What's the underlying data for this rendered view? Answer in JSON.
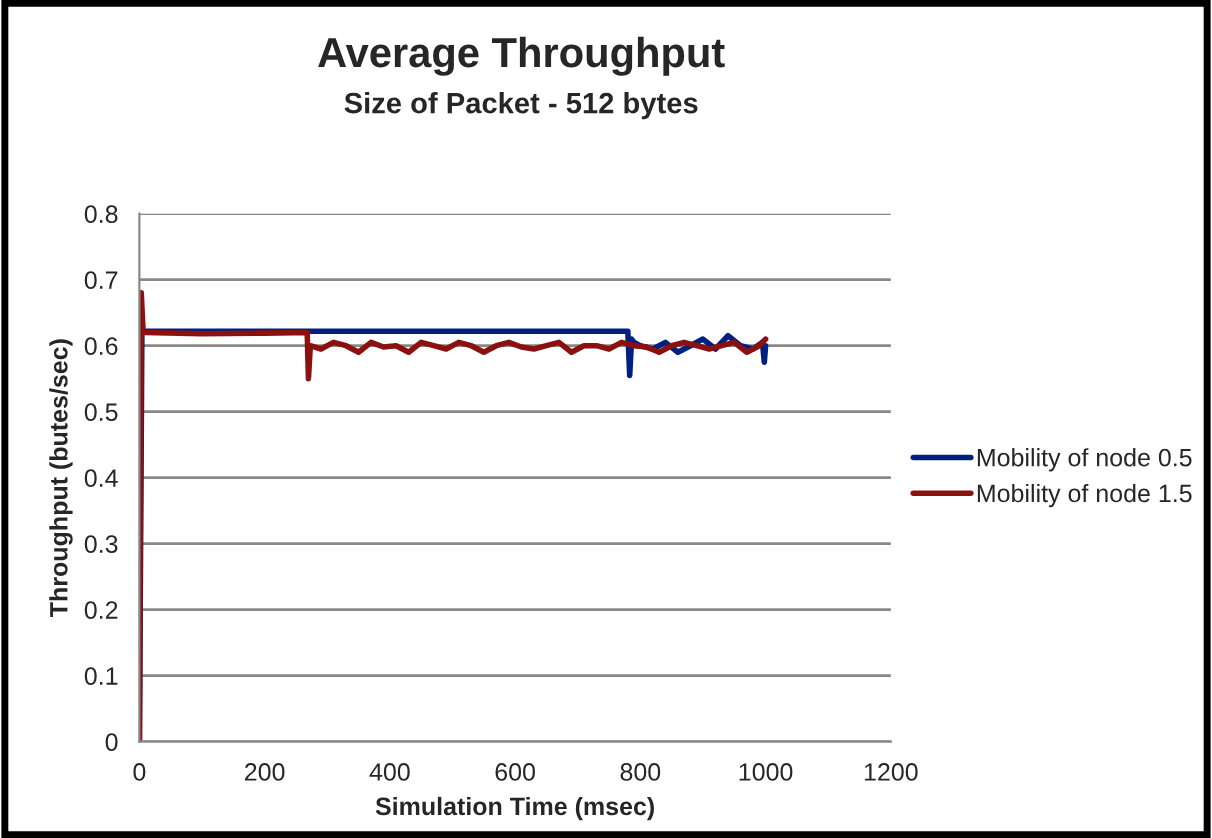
{
  "chart_data": {
    "type": "line",
    "title": "Average Throughput",
    "subtitle": "Size of Packet - 512 bytes",
    "xlabel": "Simulation Time (msec)",
    "ylabel": "Throughput (butes/sec)",
    "xlim": [
      0,
      1200
    ],
    "xticks": [
      0,
      200,
      400,
      600,
      800,
      1000,
      1200
    ],
    "ylim": [
      0,
      0.8
    ],
    "yticks": [
      0,
      0.1,
      0.2,
      0.3,
      0.4,
      0.5,
      0.6,
      0.7,
      0.8
    ],
    "grid": "y",
    "legend": "right",
    "marker": "none",
    "line_style": "solid",
    "series": [
      {
        "name": "Mobility of node 0.5",
        "color": "#002080",
        "x": [
          0,
          4,
          10,
          100,
          200,
          268,
          300,
          400,
          500,
          600,
          700,
          780,
          783,
          786,
          790,
          800,
          820,
          840,
          860,
          880,
          900,
          920,
          940,
          960,
          980,
          995,
          998,
          1000
        ],
        "values": [
          0,
          0.62,
          0.622,
          0.622,
          0.622,
          0.622,
          0.622,
          0.622,
          0.622,
          0.622,
          0.622,
          0.622,
          0.555,
          0.61,
          0.605,
          0.6,
          0.595,
          0.605,
          0.59,
          0.6,
          0.61,
          0.595,
          0.615,
          0.6,
          0.595,
          0.605,
          0.575,
          0.6
        ]
      },
      {
        "name": "Mobility of node 1.5",
        "color": "#8b1010",
        "x": [
          0,
          3,
          6,
          10,
          100,
          200,
          268,
          270,
          273,
          290,
          310,
          330,
          350,
          370,
          390,
          410,
          430,
          450,
          470,
          490,
          510,
          530,
          550,
          570,
          590,
          610,
          630,
          650,
          670,
          690,
          710,
          730,
          750,
          770,
          790,
          810,
          830,
          850,
          870,
          890,
          910,
          930,
          950,
          970,
          990,
          1000
        ],
        "values": [
          0,
          0.68,
          0.62,
          0.62,
          0.618,
          0.619,
          0.62,
          0.55,
          0.6,
          0.595,
          0.605,
          0.6,
          0.59,
          0.605,
          0.598,
          0.6,
          0.59,
          0.605,
          0.6,
          0.595,
          0.605,
          0.6,
          0.59,
          0.6,
          0.605,
          0.598,
          0.595,
          0.6,
          0.605,
          0.59,
          0.6,
          0.6,
          0.595,
          0.605,
          0.6,
          0.598,
          0.59,
          0.6,
          0.605,
          0.6,
          0.595,
          0.6,
          0.605,
          0.59,
          0.6,
          0.61
        ]
      }
    ]
  }
}
